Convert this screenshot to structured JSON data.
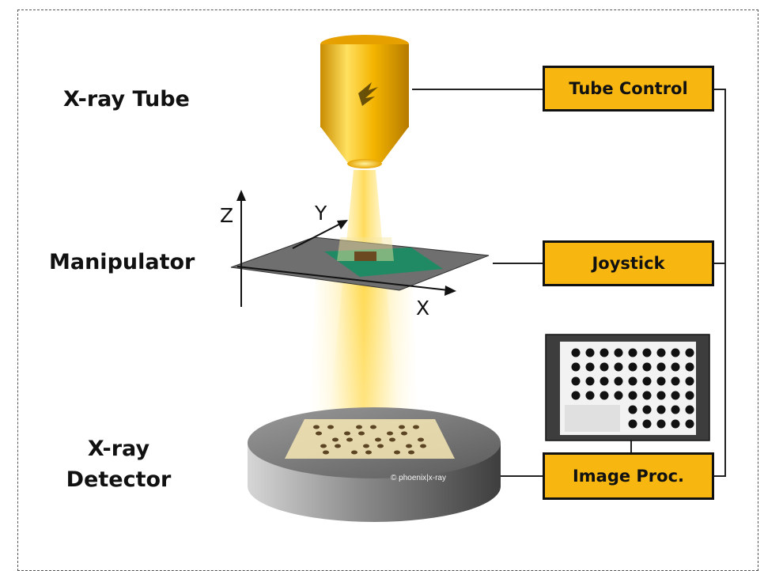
{
  "labels": {
    "xray_tube": "X-ray Tube",
    "manipulator": "Manipulator",
    "detector_line1": "X-ray",
    "detector_line2": "Detector"
  },
  "boxes": {
    "tube_control": "Tube Control",
    "joystick": "Joystick",
    "image_proc": "Image Proc."
  },
  "axes": {
    "x": "X",
    "y": "Y",
    "z": "Z"
  },
  "credit": "© phoenix|x-ray",
  "colors": {
    "box_fill": "#f7b710",
    "tube": "#f4b400",
    "line": "#222222",
    "stage": "#6f6f6f",
    "pcb": "#1f8a63"
  }
}
